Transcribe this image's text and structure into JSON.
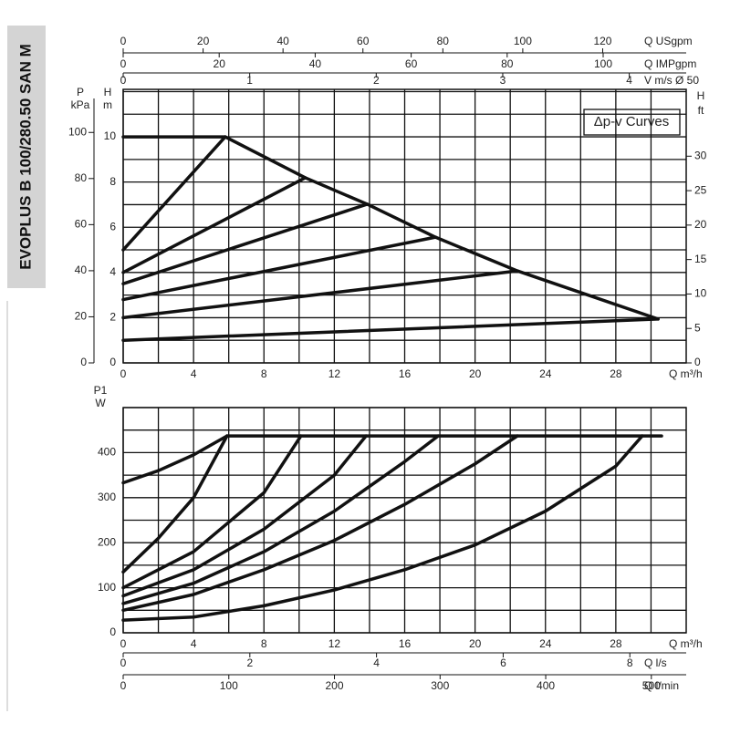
{
  "side_title": "EVOPLUS B 100/280.50 SAN M",
  "chart_data": [
    {
      "type": "line",
      "annotation": "Δp-v Curves",
      "x_label": "Q m³/h",
      "xlim": [
        0,
        32
      ],
      "xticks": [
        0,
        4,
        8,
        12,
        16,
        20,
        24,
        28
      ],
      "xminor": [
        2,
        6,
        10,
        14,
        18,
        22,
        26,
        30
      ],
      "y_label": [
        "H",
        "m"
      ],
      "ylim": [
        0,
        12.1
      ],
      "yticks": [
        0,
        2,
        4,
        6,
        8,
        10
      ],
      "yminor": [
        1,
        3,
        5,
        7,
        9,
        11,
        12
      ],
      "left_outer": {
        "label": [
          "P",
          "kPa"
        ],
        "lim": [
          0,
          118.7
        ],
        "ticks": [
          0,
          20,
          40,
          60,
          80,
          100
        ]
      },
      "right_axis": {
        "label": [
          "H",
          "ft"
        ],
        "lim": [
          0,
          39.7
        ],
        "ticks": [
          0,
          5,
          10,
          15,
          20,
          25,
          30
        ]
      },
      "top_axes": [
        {
          "label": "Q USgpm",
          "lim": [
            0,
            140.9
          ],
          "ticks": [
            0,
            20,
            40,
            60,
            80,
            100,
            120
          ]
        },
        {
          "label": "Q IMPgpm",
          "lim": [
            0,
            117.3
          ],
          "ticks": [
            0,
            20,
            40,
            60,
            80,
            100
          ]
        },
        {
          "label": "V m/s Ø 50",
          "lim": [
            0,
            4.45
          ],
          "ticks": [
            0,
            1,
            2,
            3,
            4
          ]
        }
      ],
      "series": [
        {
          "color": "#111111",
          "x": [
            0,
            5.8,
            10.35,
            13.87,
            17.75,
            22.4,
            30.4
          ],
          "values": [
            10,
            10,
            8.19,
            7.02,
            5.56,
            4.07,
            1.94
          ]
        },
        {
          "color": "#111111",
          "x": [
            0,
            5.8
          ],
          "values": [
            5,
            10
          ]
        },
        {
          "color": "#111111",
          "x": [
            0,
            10.35
          ],
          "values": [
            4,
            8.19
          ]
        },
        {
          "color": "#111111",
          "x": [
            0,
            13.87
          ],
          "values": [
            3.5,
            7.02
          ]
        },
        {
          "color": "#111111",
          "x": [
            0,
            17.75
          ],
          "values": [
            2.8,
            5.56
          ]
        },
        {
          "color": "#111111",
          "x": [
            0,
            22.4
          ],
          "values": [
            2,
            4.07
          ]
        },
        {
          "color": "#111111",
          "x": [
            0,
            30.4
          ],
          "values": [
            1,
            1.94
          ]
        }
      ]
    },
    {
      "type": "line",
      "x_label": "Q m³/h",
      "xlim": [
        0,
        32
      ],
      "xticks": [
        0,
        4,
        8,
        12,
        16,
        20,
        24,
        28
      ],
      "xminor": [
        2,
        6,
        10,
        14,
        18,
        22,
        26,
        30
      ],
      "y_label": [
        "P1",
        "W"
      ],
      "ylim": [
        0,
        500
      ],
      "yticks": [
        0,
        100,
        200,
        300,
        400
      ],
      "yminor": [
        50,
        150,
        250,
        350,
        450,
        500
      ],
      "bottom_axes": [
        {
          "label": "Q l/s",
          "lim": [
            0,
            8.89
          ],
          "ticks": [
            0,
            2,
            4,
            6,
            8
          ]
        },
        {
          "label": "Q l/min",
          "lim": [
            0,
            533
          ],
          "ticks": [
            0,
            100,
            200,
            300,
            400,
            500
          ]
        }
      ],
      "series": [
        {
          "color": "#111111",
          "x": [
            5.9,
            30.6
          ],
          "values": [
            437,
            437
          ]
        },
        {
          "color": "#111111",
          "x": [
            0,
            2,
            4,
            5.9
          ],
          "values": [
            333,
            360,
            395,
            437
          ]
        },
        {
          "color": "#111111",
          "x": [
            0,
            2,
            4,
            5.9
          ],
          "values": [
            135,
            210,
            300,
            437
          ]
        },
        {
          "color": "#111111",
          "x": [
            0,
            4,
            8,
            10.1
          ],
          "values": [
            100,
            180,
            311,
            437
          ]
        },
        {
          "color": "#111111",
          "x": [
            0,
            4,
            8,
            12,
            13.8
          ],
          "values": [
            82,
            140,
            230,
            350,
            437
          ]
        },
        {
          "color": "#111111",
          "x": [
            0,
            4,
            8,
            12,
            16,
            17.9
          ],
          "values": [
            65,
            110,
            180,
            270,
            380,
            437
          ]
        },
        {
          "color": "#111111",
          "x": [
            0,
            4,
            8,
            12,
            16,
            20,
            22.4
          ],
          "values": [
            50,
            85,
            140,
            205,
            285,
            375,
            437
          ]
        },
        {
          "color": "#111111",
          "x": [
            0,
            4,
            8,
            12,
            16,
            20,
            24,
            28,
            29.5
          ],
          "values": [
            28,
            35,
            60,
            95,
            140,
            195,
            270,
            370,
            437
          ]
        }
      ]
    }
  ]
}
